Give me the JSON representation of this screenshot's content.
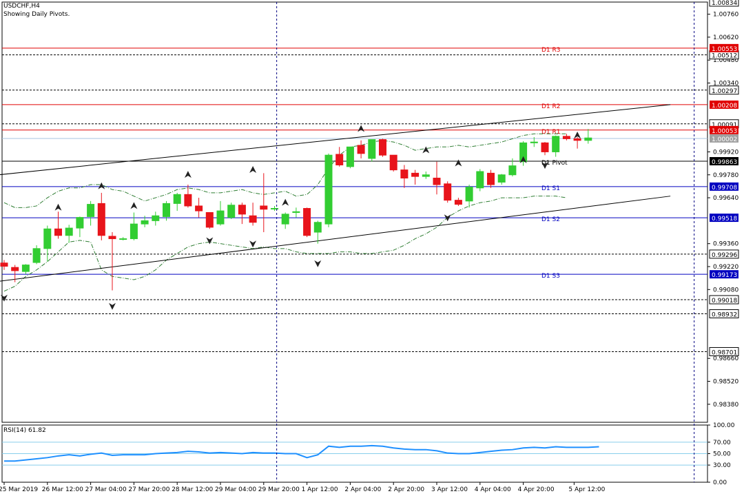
{
  "header": {
    "symbol": "USDCHF,H4",
    "note": "Showing Daily Pivots."
  },
  "colors": {
    "bull": "#32cd32",
    "bear": "#e8141b",
    "pivot_resistance": "#e00000",
    "pivot_support": "#0000c0",
    "rsi_line": "#1e90ff",
    "rsi_level": "#87ceeb",
    "grid_dash": "#000080"
  },
  "chart_data": [
    {
      "type": "candlestick",
      "title": "USDCHF,H4",
      "ylim": [
        0.9827,
        1.00834
      ],
      "price_ticks": [
        "1.00760",
        "1.00620",
        "1.00480",
        "1.00340",
        "0.99920",
        "0.99780",
        "0.99640",
        "0.99360",
        "0.99220",
        "0.99080",
        "0.98660",
        "0.98520",
        "0.98380"
      ],
      "time_labels": [
        "25 Mar 2019",
        "26 Mar 12:00",
        "27 Mar 04:00",
        "27 Mar 20:00",
        "28 Mar 12:00",
        "29 Mar 04:00",
        "29 Mar 20:00",
        "1 Apr 12:00",
        "2 Apr 04:00",
        "2 Apr 20:00",
        "3 Apr 12:00",
        "4 Apr 04:00",
        "4 Apr 20:00",
        "5 Apr 12:00"
      ],
      "candles": [
        [
          0.99242,
          0.9926,
          0.992,
          0.99222
        ],
        [
          0.99215,
          0.9923,
          0.99125,
          0.99195
        ],
        [
          0.9919,
          0.99235,
          0.99175,
          0.9923
        ],
        [
          0.99245,
          0.9935,
          0.99235,
          0.9933
        ],
        [
          0.9933,
          0.9947,
          0.9925,
          0.9945
        ],
        [
          0.9945,
          0.99555,
          0.9939,
          0.9941
        ],
        [
          0.9941,
          0.99475,
          0.99365,
          0.99455
        ],
        [
          0.99455,
          0.99525,
          0.994,
          0.9952
        ],
        [
          0.99525,
          0.9962,
          0.9947,
          0.996
        ],
        [
          0.99605,
          0.9967,
          0.9938,
          0.9941
        ],
        [
          0.99405,
          0.9943,
          0.99075,
          0.9939
        ],
        [
          0.9939,
          0.994,
          0.9938,
          0.9939
        ],
        [
          0.9939,
          0.9955,
          0.9938,
          0.9948
        ],
        [
          0.9948,
          0.9953,
          0.9946,
          0.995
        ],
        [
          0.995,
          0.99555,
          0.9947,
          0.9953
        ],
        [
          0.99525,
          0.9962,
          0.995,
          0.99605
        ],
        [
          0.99605,
          0.9967,
          0.9956,
          0.9966
        ],
        [
          0.9966,
          0.9972,
          0.9958,
          0.9959
        ],
        [
          0.9959,
          0.9964,
          0.9952,
          0.9956
        ],
        [
          0.9955,
          0.9954,
          0.9945,
          0.9946
        ],
        [
          0.9948,
          0.9962,
          0.9947,
          0.9956
        ],
        [
          0.9952,
          0.9961,
          0.9951,
          0.99595
        ],
        [
          0.99595,
          0.9961,
          0.9948,
          0.9954
        ],
        [
          0.9953,
          0.9961,
          0.9947,
          0.9949
        ],
        [
          0.9959,
          0.9979,
          0.9943,
          0.9957
        ],
        [
          0.99575,
          0.9959,
          0.9956,
          0.99575
        ],
        [
          0.9948,
          0.9955,
          0.9945,
          0.9954
        ],
        [
          0.9955,
          0.9958,
          0.9952,
          0.99555
        ],
        [
          0.99575,
          0.9958,
          0.994,
          0.9941
        ],
        [
          0.9943,
          0.995,
          0.9936,
          0.9949
        ],
        [
          0.9948,
          0.9991,
          0.9946,
          0.999
        ],
        [
          0.99905,
          0.9995,
          0.9983,
          0.9984
        ],
        [
          0.9983,
          0.9995,
          0.9982,
          0.9995
        ],
        [
          0.9996,
          0.9999,
          0.9988,
          0.9991
        ],
        [
          0.9988,
          0.9999,
          0.9986,
          0.99995
        ],
        [
          0.99995,
          1.0,
          0.9989,
          0.999
        ],
        [
          0.999,
          0.999,
          0.998,
          0.9981
        ],
        [
          0.9981,
          0.9984,
          0.997,
          0.9976
        ],
        [
          0.9979,
          0.9981,
          0.9972,
          0.9977
        ],
        [
          0.9977,
          0.998,
          0.99755,
          0.9978
        ],
        [
          0.9976,
          0.9986,
          0.9966,
          0.9972
        ],
        [
          0.99725,
          0.9974,
          0.9961,
          0.99625
        ],
        [
          0.99625,
          0.9964,
          0.9959,
          0.996
        ],
        [
          0.9962,
          0.9972,
          0.9958,
          0.99705
        ],
        [
          0.997,
          0.99815,
          0.9968,
          0.998
        ],
        [
          0.9979,
          0.9981,
          0.997,
          0.9972
        ],
        [
          0.99735,
          0.99785,
          0.9972,
          0.9978
        ],
        [
          0.9978,
          0.9988,
          0.9977,
          0.99835
        ],
        [
          0.9986,
          0.99985,
          0.99835,
          0.99975
        ],
        [
          0.99975,
          1.0001,
          0.9995,
          0.9998
        ],
        [
          0.99975,
          0.9998,
          0.999,
          0.9992
        ],
        [
          0.9992,
          1.0002,
          0.9989,
          1.00015
        ],
        [
          1.00015,
          1.0003,
          0.9999,
          1.0
        ],
        [
          1.0,
          1.0001,
          0.9994,
          0.9999
        ],
        [
          0.9999,
          1.0006,
          0.9997,
          1.00005
        ]
      ],
      "pivots": [
        {
          "label": "D1 R3",
          "value": 1.00553,
          "kind": "resistance"
        },
        {
          "label": "D1 R2",
          "value": 1.00208,
          "kind": "resistance"
        },
        {
          "label": "D1 R1",
          "value": 1.00053,
          "kind": "resistance"
        },
        {
          "label": "D1 Pivot",
          "value": 0.99863,
          "kind": "pivot"
        },
        {
          "label": "D1 S1",
          "value": 0.99708,
          "kind": "support"
        },
        {
          "label": "D1 S2",
          "value": 0.99518,
          "kind": "support"
        },
        {
          "label": "D1 S3",
          "value": 0.99173,
          "kind": "support"
        }
      ],
      "levels": [
        1.00834,
        1.00512,
        1.00297,
        1.00091,
        0.99296,
        0.99018,
        0.98932,
        0.98701
      ],
      "current_price": 1.00002,
      "bands_upper": [
        0.9961,
        0.9958,
        0.9958,
        0.9959,
        0.9964,
        0.9968,
        0.997,
        0.997,
        0.9972,
        0.9972,
        0.9969,
        0.9968,
        0.9965,
        0.9962,
        0.9964,
        0.9966,
        0.9969,
        0.997,
        0.9969,
        0.9967,
        0.9967,
        0.9968,
        0.9969,
        0.9967,
        0.9966,
        0.9967,
        0.9968,
        0.9965,
        0.9966,
        0.9972,
        0.9982,
        0.999,
        0.9995,
        0.9996,
        0.9998,
        0.9999,
        0.9998,
        0.9996,
        0.9993,
        0.9994,
        0.9995,
        0.9995,
        0.9996,
        0.9995,
        0.9996,
        0.9997,
        0.9998,
        1.0,
        1.0002,
        1.0003,
        1.0003,
        1.0003,
        1.0003
      ],
      "bands_lower": [
        0.9907,
        0.991,
        0.9916,
        0.992,
        0.9925,
        0.9931,
        0.9937,
        0.9938,
        0.9937,
        0.992,
        0.9916,
        0.9915,
        0.9914,
        0.9916,
        0.992,
        0.9926,
        0.993,
        0.9934,
        0.9936,
        0.9937,
        0.9936,
        0.9935,
        0.9934,
        0.9933,
        0.9934,
        0.9933,
        0.9933,
        0.9931,
        0.993,
        0.993,
        0.993,
        0.9931,
        0.9931,
        0.993,
        0.993,
        0.9931,
        0.9932,
        0.9935,
        0.9939,
        0.9942,
        0.9946,
        0.9952,
        0.9956,
        0.9959,
        0.9961,
        0.9962,
        0.9964,
        0.9964,
        0.9964,
        0.9965,
        0.9965,
        0.9965,
        0.9964
      ],
      "trendlines": [
        {
          "from": [
            -0.5,
            0.9978
          ],
          "to": [
            61.6,
            1.00208
          ]
        },
        {
          "from": [
            -0.5,
            0.9913
          ],
          "to": [
            61.6,
            0.9965
          ]
        }
      ],
      "fractals_up": [
        [
          5,
          0.9957
        ],
        [
          9,
          0.997
        ],
        [
          12,
          0.9958
        ],
        [
          17,
          0.9977
        ],
        [
          23,
          0.998
        ],
        [
          26,
          0.996
        ],
        [
          33,
          1.0005
        ],
        [
          39,
          0.9992
        ],
        [
          42,
          0.9984
        ],
        [
          48,
          0.9986
        ],
        [
          53,
          1.0001
        ]
      ],
      "fractals_down": [
        [
          0,
          0.9904
        ],
        [
          10,
          0.9899
        ],
        [
          19,
          0.9939
        ],
        [
          23,
          0.9937
        ],
        [
          29,
          0.9925
        ],
        [
          41,
          0.9953
        ],
        [
          50,
          0.9985
        ]
      ],
      "vertical_time_index": [
        25.2,
        63.8
      ]
    },
    {
      "type": "line",
      "title": "RSI(14) 61.82",
      "ylim": [
        0,
        100
      ],
      "y_ticks": [
        "100.00",
        "70.00",
        "50.00",
        "30.00",
        "0.00"
      ],
      "levels": [
        70,
        50,
        30
      ],
      "values": [
        37,
        37,
        39,
        41,
        43,
        46,
        48,
        46,
        49,
        51,
        47,
        48,
        48,
        48,
        50,
        51,
        52,
        54,
        53,
        51,
        52,
        51,
        50,
        52,
        51,
        51,
        50,
        50,
        43,
        48,
        63,
        61,
        63,
        63,
        64,
        63,
        60,
        58,
        57,
        57,
        55,
        51,
        50,
        50,
        52,
        54,
        56,
        57,
        60,
        61,
        60,
        62,
        61,
        61,
        61,
        62
      ]
    }
  ]
}
